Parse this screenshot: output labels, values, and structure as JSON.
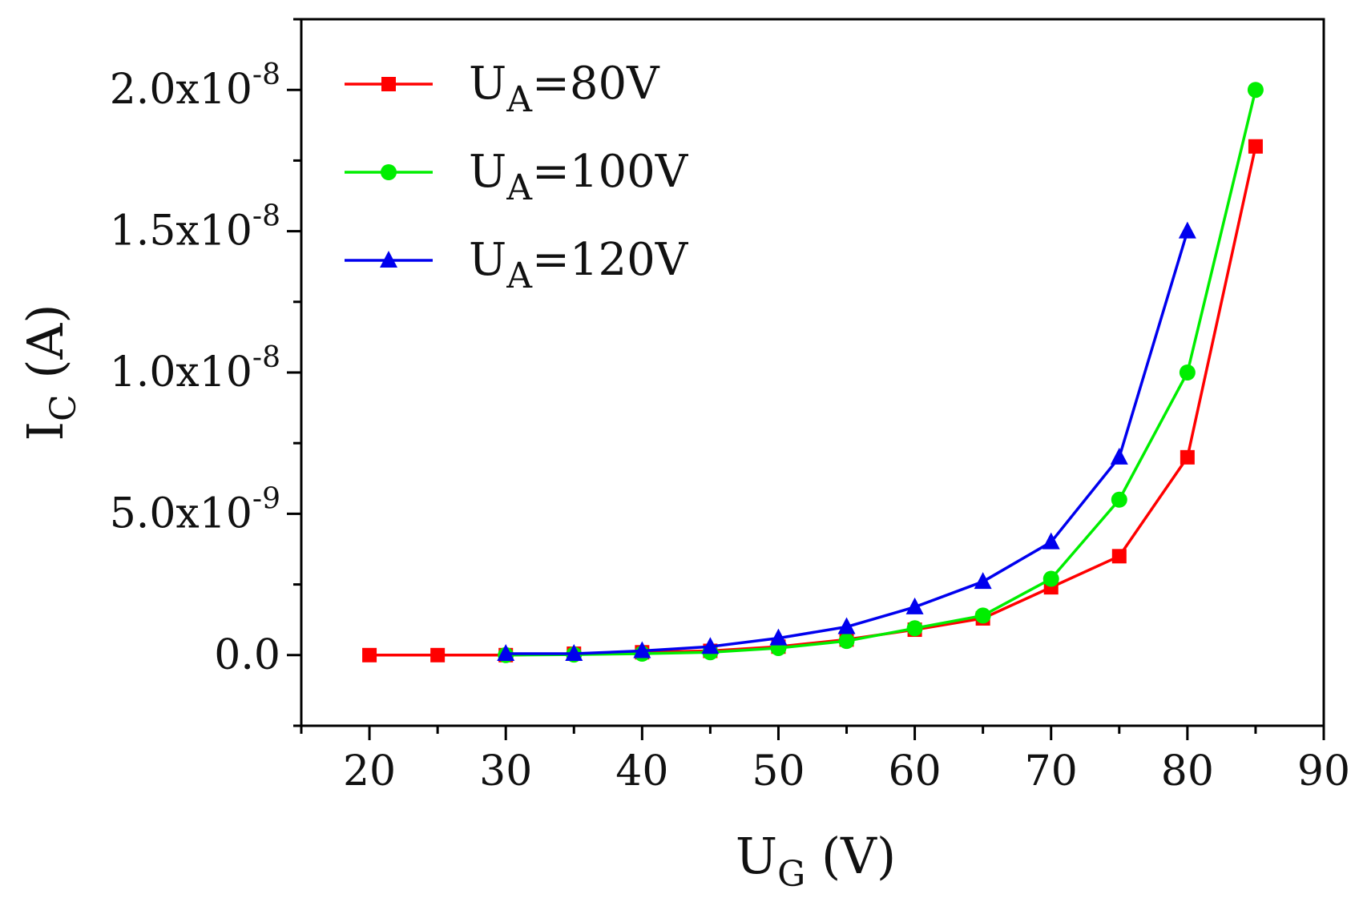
{
  "chart_data": {
    "type": "line",
    "xlabel": {
      "main": "U",
      "sub": "G",
      "rest": " (V)"
    },
    "ylabel": {
      "main": "I",
      "sub": "C",
      "rest": " (A)"
    },
    "xlim": [
      15,
      90
    ],
    "ylim": [
      -2.5e-09,
      2.25e-08
    ],
    "xticks": [
      20,
      30,
      40,
      50,
      60,
      70,
      80,
      90
    ],
    "xtick_labels": [
      "20",
      "30",
      "40",
      "50",
      "60",
      "70",
      "80",
      "90"
    ],
    "yticks": [
      {
        "value": 0,
        "mantissa": "0.0",
        "exponent": ""
      },
      {
        "value": 5e-09,
        "mantissa": "5.0x10",
        "exponent": "-9"
      },
      {
        "value": 1e-08,
        "mantissa": "1.0x10",
        "exponent": "-8"
      },
      {
        "value": 1.5e-08,
        "mantissa": "1.5x10",
        "exponent": "-8"
      },
      {
        "value": 2e-08,
        "mantissa": "2.0x10",
        "exponent": "-8"
      }
    ],
    "series": [
      {
        "name": "UA=80V",
        "legend": {
          "main": "U",
          "sub": "A",
          "rest": "=80V"
        },
        "color": "#ff0000",
        "marker": "square",
        "x": [
          20,
          25,
          30,
          35,
          40,
          45,
          50,
          55,
          60,
          65,
          70,
          75,
          80,
          85
        ],
        "y": [
          0,
          0,
          0,
          5e-11,
          1e-10,
          1.5e-10,
          3e-10,
          5.5e-10,
          9e-10,
          1.3e-09,
          2.4e-09,
          3.5e-09,
          7e-09,
          1.8e-08
        ]
      },
      {
        "name": "UA=100V",
        "legend": {
          "main": "U",
          "sub": "A",
          "rest": "=100V"
        },
        "color": "#00ee00",
        "marker": "circle",
        "x": [
          30,
          35,
          40,
          45,
          50,
          55,
          60,
          65,
          70,
          75,
          80,
          85
        ],
        "y": [
          0,
          2e-11,
          5e-11,
          1e-10,
          2.5e-10,
          5e-10,
          9.5e-10,
          1.4e-09,
          2.7e-09,
          5.5e-09,
          1e-08,
          2e-08
        ]
      },
      {
        "name": "UA=120V",
        "legend": {
          "main": "U",
          "sub": "A",
          "rest": "=120V"
        },
        "color": "#0000ee",
        "marker": "triangle",
        "x": [
          30,
          35,
          40,
          45,
          50,
          55,
          60,
          65,
          70,
          75,
          80
        ],
        "y": [
          5e-11,
          5e-11,
          1.5e-10,
          3e-10,
          6e-10,
          1e-09,
          1.7e-09,
          2.6e-09,
          4e-09,
          7e-09,
          1.5e-08
        ]
      }
    ]
  }
}
